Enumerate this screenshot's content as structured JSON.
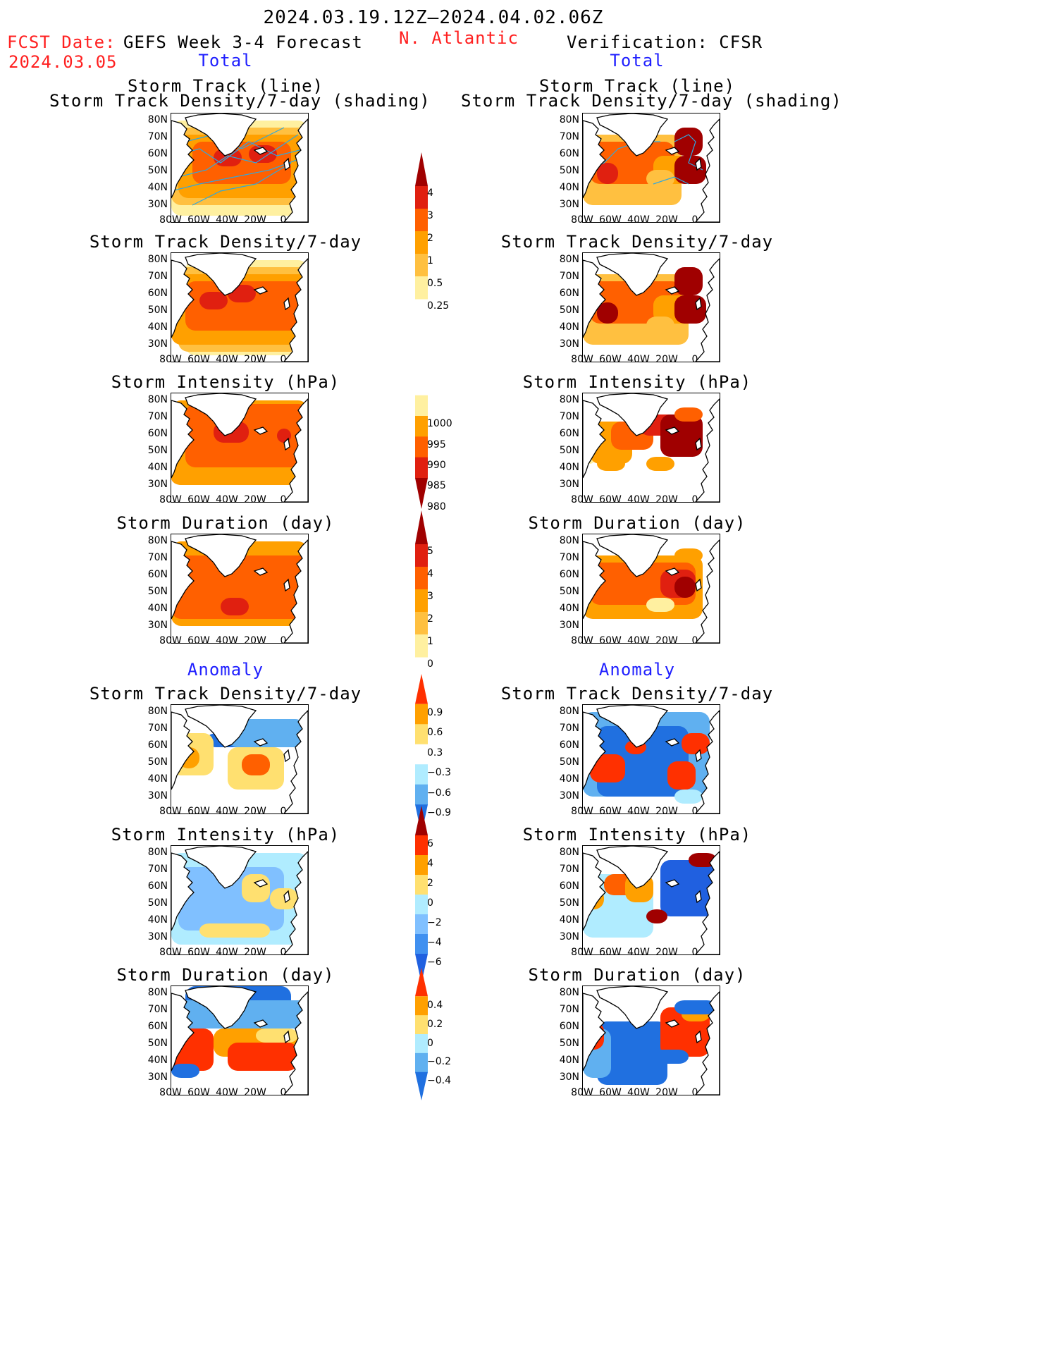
{
  "header": {
    "date_range": "2024.03.19.12Z–2024.04.02.06Z",
    "fcst_date_label": "FCST Date:",
    "fcst_date_value": "2024.03.05",
    "forecast_title": "GEFS Week 3-4 Forecast",
    "region": "N. Atlantic",
    "verification": "Verification: CFSR",
    "total_left": "Total",
    "total_right": "Total",
    "anomaly_left": "Anomaly",
    "anomaly_right": "Anomaly"
  },
  "panel_titles": {
    "track_line": "Storm Track (line)",
    "track_density_shading": "Storm Track Density/7-day (shading)",
    "track_density": "Storm Track Density/7-day",
    "intensity": "Storm Intensity (hPa)",
    "duration": "Storm Duration (day)"
  },
  "axes": {
    "lat_ticks": [
      "80N",
      "70N",
      "60N",
      "50N",
      "40N",
      "30N"
    ],
    "lon_ticks": [
      "80W",
      "60W",
      "40W",
      "20W",
      "0"
    ]
  },
  "colorbars": {
    "density": {
      "labels": [
        "4",
        "3",
        "2",
        "1",
        "0.5",
        "0.25"
      ],
      "colors": [
        "#a00000",
        "#e02010",
        "#ff6000",
        "#ffa000",
        "#ffc040",
        "#fff0a0"
      ]
    },
    "intensity": {
      "labels": [
        "1000",
        "995",
        "990",
        "985",
        "980"
      ],
      "colors": [
        "#fff0a0",
        "#ffa000",
        "#ff6000",
        "#e02010",
        "#a00000"
      ]
    },
    "duration": {
      "labels": [
        "5",
        "4",
        "3",
        "2",
        "1",
        "0"
      ],
      "colors": [
        "#a00000",
        "#e02010",
        "#ff6000",
        "#ffa000",
        "#ffc040",
        "#fff0a0"
      ]
    },
    "anom_density": {
      "labels": [
        "0.9",
        "0.6",
        "0.3",
        "−0.3",
        "−0.6",
        "−0.9"
      ],
      "colors": [
        "#ff3000",
        "#ffa000",
        "#ffe070",
        "#ffffff",
        "#b0ecff",
        "#60b0f0",
        "#2070e0"
      ]
    },
    "anom_intensity": {
      "labels": [
        "6",
        "4",
        "2",
        "0",
        "−2",
        "−4",
        "−6"
      ],
      "colors": [
        "#a00000",
        "#ff3000",
        "#ffa000",
        "#ffe070",
        "#b0ecff",
        "#80c0ff",
        "#4090f0",
        "#2060e0"
      ]
    },
    "anom_duration": {
      "labels": [
        "0.4",
        "0.2",
        "0",
        "−0.2",
        "−0.4"
      ],
      "colors": [
        "#ff3000",
        "#ffa000",
        "#ffe070",
        "#b0ecff",
        "#60b0f0",
        "#2070e0"
      ]
    }
  }
}
